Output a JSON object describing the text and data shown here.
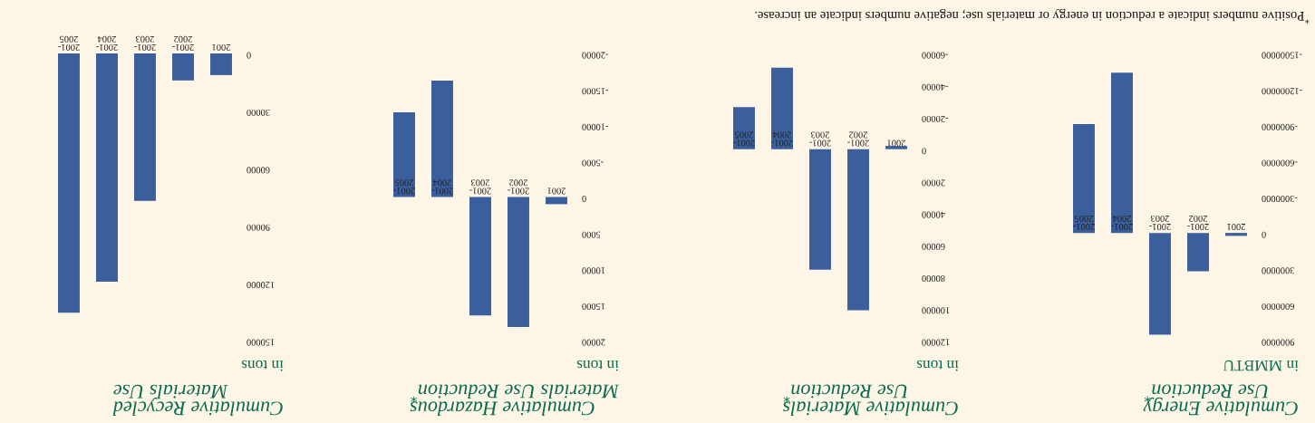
{
  "chart_data": [
    {
      "type": "bar",
      "title": "Cumulative Energy\nUse Reduction$^{*}$",
      "subtitle": "in MMBTU",
      "categories": [
        "2001-\n2005",
        "2001-\n2004",
        "2001-\n2003",
        "2001-\n2002",
        "2001"
      ],
      "values": [
        -9100000,
        -13400000,
        8500000,
        3200000,
        250000
      ],
      "color": "#3b5e9c",
      "ylim": [
        9000000,
        -15000000
      ],
      "yticks": [
        -15000000,
        -12000000,
        -9000000,
        -6000000,
        -3000000,
        0,
        3000000,
        6000000,
        9000000
      ],
      "grid": false,
      "annotations": [
        "$^{*}$Positive numbers indicate a reduction in energy or materials use; negative numbers indicate an increase."
      ]
    },
    {
      "type": "bar",
      "title": "Cumulative Materials\nUse Reduction$^{*}$",
      "subtitle": "in tons",
      "categories": [
        "2001-\n2005",
        "2001-\n2004",
        "2001-\n2003",
        "2001-\n2002",
        "2001"
      ],
      "values": [
        -26400,
        -51000,
        75500,
        101000,
        -2000
      ],
      "color": "#3b5e9c",
      "ylim": [
        120000,
        -60000
      ],
      "yticks": [
        -60000,
        -40000,
        -20000,
        0,
        20000,
        40000,
        60000,
        80000,
        100000,
        120000
      ],
      "grid": false
    },
    {
      "type": "bar",
      "title": "Cumulative Hazardous\nMaterials Use Reduction$^{*}$",
      "subtitle": "in tons",
      "categories": [
        "2001-\n2005",
        "2001-\n2004",
        "2001-\n2003",
        "2001-\n2002",
        "2001"
      ],
      "values": [
        -11800,
        -16200,
        16500,
        18100,
        1000
      ],
      "color": "#3b5e9c",
      "ylim": [
        20000,
        -20000
      ],
      "yticks": [
        -20000,
        -15000,
        -10000,
        -5000,
        0,
        5000,
        10000,
        15000,
        20000
      ],
      "grid": false
    },
    {
      "type": "bar",
      "title": "Cumulative Recycled\nMaterials Use",
      "subtitle": "in tons",
      "categories": [
        "2001-\n2005",
        "2001-\n2004",
        "2001-\n2003",
        "2001-\n2002",
        "2001"
      ],
      "values": [
        135500,
        119300,
        77000,
        14100,
        11300
      ],
      "color": "#3b5e9c",
      "ylim": [
        150000,
        0
      ],
      "yticks": [
        0,
        30000,
        60000,
        90000,
        120000,
        150000
      ],
      "grid": false
    }
  ]
}
